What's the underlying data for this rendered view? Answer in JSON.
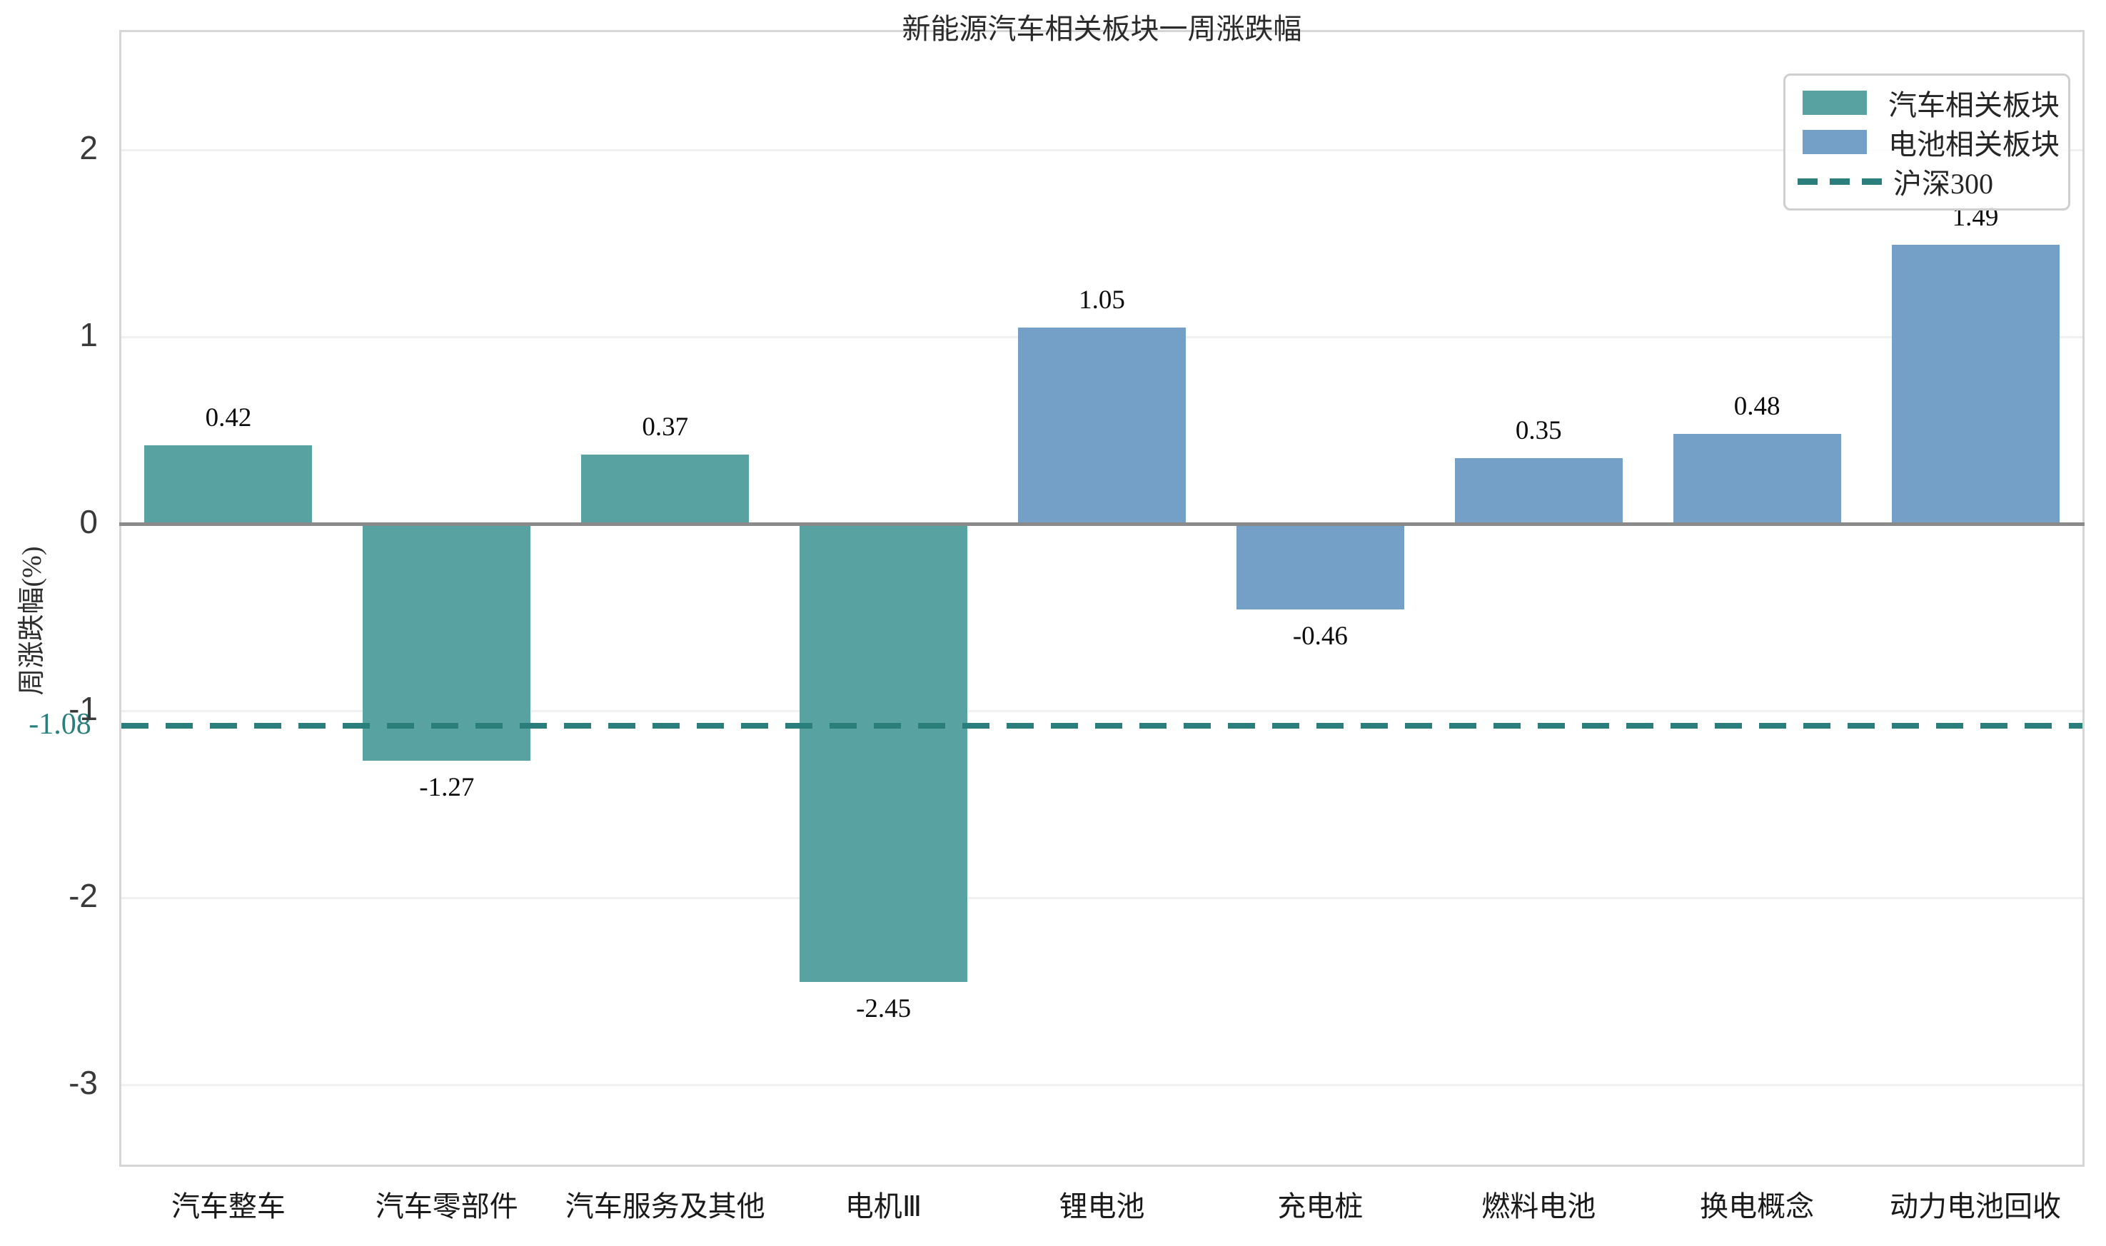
{
  "chart_data": {
    "type": "bar",
    "title": "新能源汽车相关板块一周涨跌幅",
    "xlabel": "",
    "ylabel": "周涨跌幅(%)",
    "categories": [
      "汽车整车",
      "汽车零部件",
      "汽车服务及其他",
      "电机Ⅲ",
      "锂电池",
      "充电桩",
      "燃料电池",
      "换电概念",
      "动力电池回收"
    ],
    "series": [
      {
        "name": "汽车相关板块",
        "color": "#58a3a1",
        "values": [
          0.42,
          -1.27,
          0.37,
          -2.45,
          null,
          null,
          null,
          null,
          null
        ]
      },
      {
        "name": "电池相关板块",
        "color": "#74a0c8",
        "values": [
          null,
          null,
          null,
          null,
          1.05,
          -0.46,
          0.35,
          0.48,
          1.49
        ]
      }
    ],
    "bar_value_labels": [
      "0.42",
      "-1.27",
      "0.37",
      "-2.45",
      "1.05",
      "-0.46",
      "0.35",
      "0.48",
      "1.49"
    ],
    "reference_line": {
      "name": "沪深300",
      "value": -1.08,
      "display": "-1.08",
      "color": "#2a7f7d",
      "style": "dashed"
    },
    "yticks": [
      2,
      1,
      0,
      -1,
      -2,
      -3
    ],
    "ylim": [
      -3.44,
      2.64
    ],
    "grid": "horizontal light-gray, white background, light-gray frame",
    "legend": {
      "position": "upper right",
      "entries": [
        {
          "label": "汽车相关板块",
          "color": "#58a3a1",
          "type": "patch"
        },
        {
          "label": "电池相关板块",
          "color": "#74a0c8",
          "type": "patch"
        },
        {
          "label": "沪深300",
          "color": "#2a7f7d",
          "type": "dashed-line"
        }
      ]
    },
    "colors": {
      "auto_sector": "#58a3a1",
      "battery_sector": "#74a0c8",
      "benchmark": "#2a7f7d",
      "zero_axis_line": "#8a8a8a",
      "gridline": "#f0f0f0",
      "frame": "#d6d6d6"
    }
  }
}
